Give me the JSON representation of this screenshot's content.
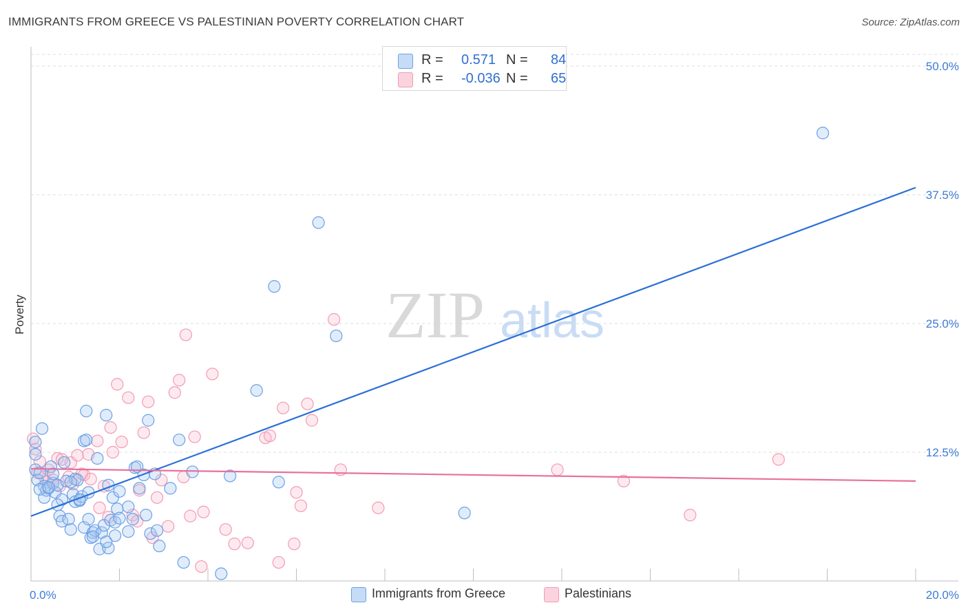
{
  "header": {
    "title": "IMMIGRANTS FROM GREECE VS PALESTINIAN POVERTY CORRELATION CHART",
    "source": "Source: ZipAtlas.com"
  },
  "legend": {
    "rows": [
      {
        "r_label": "R =",
        "r_value": "0.571",
        "n_label": "N =",
        "n_value": "84",
        "color": "#a9c8f0"
      },
      {
        "r_label": "R =",
        "r_value": "-0.036",
        "n_label": "N =",
        "n_value": "65",
        "color": "#f7b8cb"
      }
    ]
  },
  "bottom_legend": [
    {
      "label": "Immigrants from Greece",
      "color": "#a9c8f0"
    },
    {
      "label": "Palestinians",
      "color": "#f7b8cb"
    }
  ],
  "watermark": {
    "part1": "ZIP",
    "part2": "atlas"
  },
  "chart_data": {
    "type": "scatter",
    "title": "IMMIGRANTS FROM GREECE VS PALESTINIAN POVERTY CORRELATION CHART",
    "xlabel": "",
    "ylabel": "Poverty",
    "xlim": [
      0,
      20
    ],
    "ylim": [
      0,
      50
    ],
    "x_tick_labels": [
      {
        "value": 0,
        "label": "0.0%"
      },
      {
        "value": 20,
        "label": "20.0%"
      }
    ],
    "y_tick_labels": [
      {
        "value": 12.5,
        "label": "12.5%"
      },
      {
        "value": 25,
        "label": "25.0%"
      },
      {
        "value": 37.5,
        "label": "37.5%"
      },
      {
        "value": 50,
        "label": "50.0%"
      }
    ],
    "grid": true,
    "legend_position": "top-center",
    "series": [
      {
        "name": "Immigrants from Greece",
        "color": "#6aa0e6",
        "line_color": "#2a6fd6",
        "trend": {
          "x": [
            0,
            20
          ],
          "y": [
            6.3,
            38.2
          ]
        },
        "points": [
          [
            0.1,
            13.5
          ],
          [
            0.1,
            12.3
          ],
          [
            0.1,
            10.8
          ],
          [
            0.15,
            9.8
          ],
          [
            0.2,
            10.5
          ],
          [
            0.25,
            14.8
          ],
          [
            0.3,
            9.2
          ],
          [
            0.3,
            8.1
          ],
          [
            0.35,
            8.8
          ],
          [
            0.4,
            9.0
          ],
          [
            0.45,
            11.1
          ],
          [
            0.5,
            9.5
          ],
          [
            0.55,
            8.6
          ],
          [
            0.6,
            9.3
          ],
          [
            0.65,
            6.3
          ],
          [
            0.7,
            5.8
          ],
          [
            0.7,
            7.9
          ],
          [
            0.75,
            11.5
          ],
          [
            0.8,
            9.7
          ],
          [
            0.85,
            6.0
          ],
          [
            0.9,
            5.0
          ],
          [
            0.95,
            8.4
          ],
          [
            1.0,
            9.9
          ],
          [
            1.0,
            7.7
          ],
          [
            1.05,
            9.8
          ],
          [
            1.1,
            7.8
          ],
          [
            1.15,
            8.2
          ],
          [
            1.2,
            5.2
          ],
          [
            1.2,
            13.6
          ],
          [
            1.25,
            13.7
          ],
          [
            1.25,
            16.5
          ],
          [
            1.3,
            8.6
          ],
          [
            1.3,
            6.0
          ],
          [
            1.35,
            4.2
          ],
          [
            1.4,
            4.7
          ],
          [
            1.45,
            4.9
          ],
          [
            1.5,
            11.9
          ],
          [
            1.55,
            3.1
          ],
          [
            1.6,
            4.7
          ],
          [
            1.65,
            5.4
          ],
          [
            1.7,
            16.1
          ],
          [
            1.75,
            9.3
          ],
          [
            1.75,
            3.2
          ],
          [
            1.8,
            5.9
          ],
          [
            1.85,
            8.1
          ],
          [
            1.9,
            4.4
          ],
          [
            1.9,
            5.7
          ],
          [
            1.95,
            7.0
          ],
          [
            2.0,
            6.1
          ],
          [
            2.2,
            4.8
          ],
          [
            2.2,
            7.2
          ],
          [
            2.35,
            11.0
          ],
          [
            2.4,
            11.1
          ],
          [
            2.45,
            9.0
          ],
          [
            2.55,
            10.3
          ],
          [
            2.6,
            6.4
          ],
          [
            2.65,
            15.6
          ],
          [
            2.7,
            4.6
          ],
          [
            2.8,
            10.4
          ],
          [
            2.85,
            4.9
          ],
          [
            2.9,
            3.4
          ],
          [
            3.15,
            9.0
          ],
          [
            3.35,
            13.7
          ],
          [
            3.45,
            1.8
          ],
          [
            3.65,
            10.6
          ],
          [
            4.3,
            0.7
          ],
          [
            4.5,
            10.2
          ],
          [
            5.1,
            18.5
          ],
          [
            5.5,
            28.6
          ],
          [
            5.6,
            9.6
          ],
          [
            6.5,
            34.8
          ],
          [
            6.9,
            23.8
          ],
          [
            9.8,
            6.6
          ],
          [
            17.9,
            43.5
          ],
          [
            0.2,
            8.9
          ],
          [
            0.4,
            9.1
          ],
          [
            0.6,
            7.4
          ],
          [
            0.9,
            9.6
          ],
          [
            1.1,
            7.9
          ],
          [
            2.0,
            8.7
          ],
          [
            0.5,
            10.4
          ],
          [
            1.4,
            4.3
          ],
          [
            2.3,
            6.0
          ],
          [
            1.7,
            3.8
          ]
        ]
      },
      {
        "name": "Palestinians",
        "color": "#f29ab6",
        "line_color": "#e8709a",
        "trend": {
          "x": [
            0,
            20
          ],
          "y": [
            10.9,
            9.7
          ]
        },
        "points": [
          [
            0.05,
            13.8
          ],
          [
            0.1,
            12.8
          ],
          [
            0.15,
            10.5
          ],
          [
            0.2,
            11.6
          ],
          [
            0.3,
            10.1
          ],
          [
            0.35,
            9.6
          ],
          [
            0.4,
            10.8
          ],
          [
            0.5,
            9.8
          ],
          [
            0.6,
            11.9
          ],
          [
            0.65,
            9.2
          ],
          [
            0.7,
            11.8
          ],
          [
            0.85,
            10.1
          ],
          [
            0.9,
            11.5
          ],
          [
            0.95,
            9.4
          ],
          [
            1.05,
            12.2
          ],
          [
            1.15,
            10.4
          ],
          [
            1.2,
            10.3
          ],
          [
            1.3,
            12.3
          ],
          [
            1.35,
            9.9
          ],
          [
            1.5,
            13.6
          ],
          [
            1.55,
            7.1
          ],
          [
            1.65,
            9.2
          ],
          [
            1.75,
            6.2
          ],
          [
            1.8,
            14.9
          ],
          [
            1.85,
            12.5
          ],
          [
            1.95,
            19.1
          ],
          [
            2.05,
            13.5
          ],
          [
            2.2,
            17.8
          ],
          [
            2.3,
            6.4
          ],
          [
            2.4,
            5.8
          ],
          [
            2.45,
            8.8
          ],
          [
            2.55,
            14.4
          ],
          [
            2.65,
            17.4
          ],
          [
            2.75,
            4.2
          ],
          [
            2.85,
            8.1
          ],
          [
            2.95,
            9.8
          ],
          [
            3.1,
            5.3
          ],
          [
            3.25,
            18.3
          ],
          [
            3.35,
            19.5
          ],
          [
            3.45,
            10.1
          ],
          [
            3.5,
            23.9
          ],
          [
            3.6,
            6.3
          ],
          [
            3.7,
            14.0
          ],
          [
            3.85,
            1.4
          ],
          [
            3.9,
            6.7
          ],
          [
            4.1,
            20.1
          ],
          [
            4.4,
            5.0
          ],
          [
            4.6,
            3.6
          ],
          [
            4.9,
            3.7
          ],
          [
            5.3,
            13.9
          ],
          [
            5.4,
            14.1
          ],
          [
            5.6,
            1.8
          ],
          [
            5.7,
            16.8
          ],
          [
            5.95,
            3.6
          ],
          [
            6.0,
            8.6
          ],
          [
            6.1,
            7.3
          ],
          [
            6.25,
            17.2
          ],
          [
            6.35,
            15.6
          ],
          [
            6.85,
            25.4
          ],
          [
            7.0,
            10.8
          ],
          [
            7.85,
            7.1
          ],
          [
            11.9,
            10.8
          ],
          [
            13.4,
            9.7
          ],
          [
            14.9,
            6.4
          ],
          [
            16.9,
            11.8
          ]
        ]
      }
    ]
  }
}
